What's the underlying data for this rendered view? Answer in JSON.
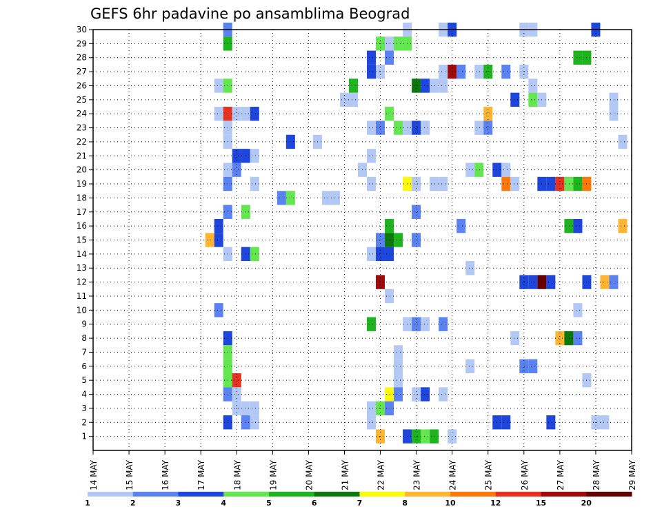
{
  "chart_data": {
    "type": "heatmap",
    "title": "GEFS 6hr padavine po ansamblima Beograd",
    "xlabel": "",
    "ylabel": "",
    "y_ticks": [
      "1",
      "2",
      "3",
      "4",
      "5",
      "6",
      "7",
      "8",
      "9",
      "10",
      "11",
      "12",
      "13",
      "14",
      "15",
      "16",
      "17",
      "18",
      "19",
      "20",
      "21",
      "22",
      "23",
      "24",
      "25",
      "26",
      "27",
      "28",
      "29",
      "30"
    ],
    "x_ticks": [
      "14 MAY",
      "15 MAY",
      "16 MAY",
      "17 MAY",
      "18 MAY",
      "19 MAY",
      "20 MAY",
      "21 MAY",
      "22 MAY",
      "23 MAY",
      "24 MAY",
      "25 MAY",
      "26 MAY",
      "27 MAY",
      "28 MAY",
      "29 MAY"
    ],
    "xlim_days": [
      14,
      29
    ],
    "ylim": [
      0,
      30
    ],
    "grid": true,
    "colorbar": {
      "labels": [
        "1",
        "2",
        "3",
        "4",
        "5",
        "6",
        "7",
        "8",
        "10",
        "12",
        "15",
        "20"
      ],
      "colors": [
        "#b4c8f5",
        "#5a82f0",
        "#1e46dc",
        "#64e650",
        "#1eb41e",
        "#0a780a",
        "#fafa0a",
        "#ffb432",
        "#ff780a",
        "#e6321e",
        "#a00a0a",
        "#640000"
      ]
    },
    "cells": [
      {
        "day": 17.75,
        "member": 30,
        "c": 1
      },
      {
        "day": 22.75,
        "member": 30,
        "c": 0
      },
      {
        "day": 23.75,
        "member": 30,
        "c": 0
      },
      {
        "day": 24.0,
        "member": 30,
        "c": 2
      },
      {
        "day": 26.0,
        "member": 30,
        "c": 0
      },
      {
        "day": 26.25,
        "member": 30,
        "c": 0
      },
      {
        "day": 28.0,
        "member": 30,
        "c": 2
      },
      {
        "day": 17.75,
        "member": 29,
        "c": 4
      },
      {
        "day": 22.0,
        "member": 29,
        "c": 3
      },
      {
        "day": 22.25,
        "member": 29,
        "c": 0
      },
      {
        "day": 22.5,
        "member": 29,
        "c": 3
      },
      {
        "day": 22.75,
        "member": 29,
        "c": 3
      },
      {
        "day": 22.25,
        "member": 28,
        "c": 1
      },
      {
        "day": 27.5,
        "member": 28,
        "c": 4
      },
      {
        "day": 27.75,
        "member": 28,
        "c": 4
      },
      {
        "day": 21.75,
        "member": 28,
        "c": 2
      },
      {
        "day": 21.75,
        "member": 27,
        "c": 2
      },
      {
        "day": 22.0,
        "member": 27,
        "c": 0
      },
      {
        "day": 23.75,
        "member": 27,
        "c": 0
      },
      {
        "day": 24.0,
        "member": 27,
        "c": 10
      },
      {
        "day": 24.25,
        "member": 27,
        "c": 1
      },
      {
        "day": 24.75,
        "member": 27,
        "c": 0
      },
      {
        "day": 25.0,
        "member": 27,
        "c": 4
      },
      {
        "day": 25.5,
        "member": 27,
        "c": 1
      },
      {
        "day": 26.0,
        "member": 27,
        "c": 0
      },
      {
        "day": 17.5,
        "member": 26,
        "c": 0
      },
      {
        "day": 17.75,
        "member": 26,
        "c": 3
      },
      {
        "day": 21.25,
        "member": 26,
        "c": 4
      },
      {
        "day": 23.0,
        "member": 26,
        "c": 5
      },
      {
        "day": 23.25,
        "member": 26,
        "c": 2
      },
      {
        "day": 23.5,
        "member": 26,
        "c": 0
      },
      {
        "day": 23.75,
        "member": 26,
        "c": 0
      },
      {
        "day": 26.25,
        "member": 26,
        "c": 0
      },
      {
        "day": 21.0,
        "member": 25,
        "c": 0
      },
      {
        "day": 21.25,
        "member": 25,
        "c": 0
      },
      {
        "day": 25.75,
        "member": 25,
        "c": 2
      },
      {
        "day": 26.25,
        "member": 25,
        "c": 3
      },
      {
        "day": 26.5,
        "member": 25,
        "c": 0
      },
      {
        "day": 28.5,
        "member": 25,
        "c": 0
      },
      {
        "day": 17.5,
        "member": 24,
        "c": 0
      },
      {
        "day": 17.75,
        "member": 24,
        "c": 9
      },
      {
        "day": 18.0,
        "member": 24,
        "c": 0
      },
      {
        "day": 18.25,
        "member": 24,
        "c": 0
      },
      {
        "day": 18.5,
        "member": 24,
        "c": 2
      },
      {
        "day": 22.25,
        "member": 24,
        "c": 3
      },
      {
        "day": 25.0,
        "member": 24,
        "c": 7
      },
      {
        "day": 28.5,
        "member": 24,
        "c": 0
      },
      {
        "day": 17.75,
        "member": 23,
        "c": 0
      },
      {
        "day": 21.75,
        "member": 23,
        "c": 0
      },
      {
        "day": 22.0,
        "member": 23,
        "c": 1
      },
      {
        "day": 22.5,
        "member": 23,
        "c": 3
      },
      {
        "day": 22.75,
        "member": 23,
        "c": 0
      },
      {
        "day": 23.0,
        "member": 23,
        "c": 2
      },
      {
        "day": 23.25,
        "member": 23,
        "c": 0
      },
      {
        "day": 24.75,
        "member": 23,
        "c": 0
      },
      {
        "day": 25.0,
        "member": 23,
        "c": 1
      },
      {
        "day": 17.75,
        "member": 22,
        "c": 0
      },
      {
        "day": 19.5,
        "member": 22,
        "c": 2
      },
      {
        "day": 20.25,
        "member": 22,
        "c": 0
      },
      {
        "day": 28.75,
        "member": 22,
        "c": 0
      },
      {
        "day": 18.0,
        "member": 21,
        "c": 2
      },
      {
        "day": 18.25,
        "member": 21,
        "c": 2
      },
      {
        "day": 18.5,
        "member": 21,
        "c": 0
      },
      {
        "day": 21.75,
        "member": 21,
        "c": 0
      },
      {
        "day": 17.75,
        "member": 20,
        "c": 0
      },
      {
        "day": 18.0,
        "member": 20,
        "c": 1
      },
      {
        "day": 21.5,
        "member": 20,
        "c": 0
      },
      {
        "day": 24.5,
        "member": 20,
        "c": 0
      },
      {
        "day": 24.75,
        "member": 20,
        "c": 3
      },
      {
        "day": 25.25,
        "member": 20,
        "c": 2
      },
      {
        "day": 25.5,
        "member": 20,
        "c": 0
      },
      {
        "day": 17.75,
        "member": 19,
        "c": 1
      },
      {
        "day": 18.5,
        "member": 19,
        "c": 0
      },
      {
        "day": 21.75,
        "member": 19,
        "c": 0
      },
      {
        "day": 22.75,
        "member": 19,
        "c": 6
      },
      {
        "day": 23.0,
        "member": 19,
        "c": 0
      },
      {
        "day": 23.5,
        "member": 19,
        "c": 0
      },
      {
        "day": 23.75,
        "member": 19,
        "c": 0
      },
      {
        "day": 25.5,
        "member": 19,
        "c": 8
      },
      {
        "day": 25.75,
        "member": 19,
        "c": 0
      },
      {
        "day": 26.5,
        "member": 19,
        "c": 2
      },
      {
        "day": 26.75,
        "member": 19,
        "c": 2
      },
      {
        "day": 27.0,
        "member": 19,
        "c": 9
      },
      {
        "day": 27.25,
        "member": 19,
        "c": 3
      },
      {
        "day": 27.5,
        "member": 19,
        "c": 4
      },
      {
        "day": 27.75,
        "member": 19,
        "c": 8
      },
      {
        "day": 19.25,
        "member": 18,
        "c": 1
      },
      {
        "day": 19.5,
        "member": 18,
        "c": 3
      },
      {
        "day": 20.5,
        "member": 18,
        "c": 0
      },
      {
        "day": 20.75,
        "member": 18,
        "c": 0
      },
      {
        "day": 17.75,
        "member": 17,
        "c": 1
      },
      {
        "day": 18.25,
        "member": 17,
        "c": 3
      },
      {
        "day": 23.0,
        "member": 17,
        "c": 1
      },
      {
        "day": 17.5,
        "member": 16,
        "c": 2
      },
      {
        "day": 22.25,
        "member": 16,
        "c": 4
      },
      {
        "day": 24.25,
        "member": 16,
        "c": 1
      },
      {
        "day": 27.25,
        "member": 16,
        "c": 4
      },
      {
        "day": 27.5,
        "member": 16,
        "c": 2
      },
      {
        "day": 28.75,
        "member": 16,
        "c": 7
      },
      {
        "day": 17.25,
        "member": 15,
        "c": 7
      },
      {
        "day": 17.5,
        "member": 15,
        "c": 2
      },
      {
        "day": 22.0,
        "member": 15,
        "c": 1
      },
      {
        "day": 22.25,
        "member": 15,
        "c": 5
      },
      {
        "day": 22.5,
        "member": 15,
        "c": 4
      },
      {
        "day": 23.0,
        "member": 15,
        "c": 1
      },
      {
        "day": 17.75,
        "member": 14,
        "c": 0
      },
      {
        "day": 18.25,
        "member": 14,
        "c": 2
      },
      {
        "day": 18.5,
        "member": 14,
        "c": 3
      },
      {
        "day": 21.75,
        "member": 14,
        "c": 0
      },
      {
        "day": 22.0,
        "member": 14,
        "c": 2
      },
      {
        "day": 22.25,
        "member": 14,
        "c": 2
      },
      {
        "day": 24.5,
        "member": 13,
        "c": 0
      },
      {
        "day": 22.0,
        "member": 12,
        "c": 10
      },
      {
        "day": 26.0,
        "member": 12,
        "c": 2
      },
      {
        "day": 26.25,
        "member": 12,
        "c": 2
      },
      {
        "day": 26.5,
        "member": 12,
        "c": 11
      },
      {
        "day": 26.75,
        "member": 12,
        "c": 2
      },
      {
        "day": 27.75,
        "member": 12,
        "c": 2
      },
      {
        "day": 28.25,
        "member": 12,
        "c": 7
      },
      {
        "day": 28.5,
        "member": 12,
        "c": 1
      },
      {
        "day": 22.25,
        "member": 11,
        "c": 0
      },
      {
        "day": 17.5,
        "member": 10,
        "c": 1
      },
      {
        "day": 27.5,
        "member": 10,
        "c": 0
      },
      {
        "day": 21.75,
        "member": 9,
        "c": 4
      },
      {
        "day": 22.75,
        "member": 9,
        "c": 0
      },
      {
        "day": 23.0,
        "member": 9,
        "c": 1
      },
      {
        "day": 23.25,
        "member": 9,
        "c": 0
      },
      {
        "day": 23.75,
        "member": 9,
        "c": 1
      },
      {
        "day": 17.75,
        "member": 8,
        "c": 2
      },
      {
        "day": 25.75,
        "member": 8,
        "c": 0
      },
      {
        "day": 27.0,
        "member": 8,
        "c": 7
      },
      {
        "day": 27.25,
        "member": 8,
        "c": 5
      },
      {
        "day": 27.5,
        "member": 8,
        "c": 1
      },
      {
        "day": 17.75,
        "member": 7,
        "c": 3
      },
      {
        "day": 22.5,
        "member": 7,
        "c": 0
      },
      {
        "day": 17.75,
        "member": 6,
        "c": 3
      },
      {
        "day": 22.5,
        "member": 6,
        "c": 0
      },
      {
        "day": 24.5,
        "member": 6,
        "c": 0
      },
      {
        "day": 26.0,
        "member": 6,
        "c": 1
      },
      {
        "day": 26.25,
        "member": 6,
        "c": 1
      },
      {
        "day": 17.75,
        "member": 5,
        "c": 3
      },
      {
        "day": 18.0,
        "member": 5,
        "c": 9
      },
      {
        "day": 22.5,
        "member": 5,
        "c": 0
      },
      {
        "day": 27.75,
        "member": 5,
        "c": 0
      },
      {
        "day": 17.75,
        "member": 4,
        "c": 1
      },
      {
        "day": 18.0,
        "member": 4,
        "c": 0
      },
      {
        "day": 22.25,
        "member": 4,
        "c": 6
      },
      {
        "day": 22.5,
        "member": 4,
        "c": 1
      },
      {
        "day": 23.0,
        "member": 4,
        "c": 0
      },
      {
        "day": 23.25,
        "member": 4,
        "c": 2
      },
      {
        "day": 23.75,
        "member": 4,
        "c": 0
      },
      {
        "day": 18.0,
        "member": 3,
        "c": 0
      },
      {
        "day": 18.25,
        "member": 3,
        "c": 0
      },
      {
        "day": 18.5,
        "member": 3,
        "c": 0
      },
      {
        "day": 21.75,
        "member": 3,
        "c": 0
      },
      {
        "day": 22.0,
        "member": 3,
        "c": 3
      },
      {
        "day": 22.25,
        "member": 3,
        "c": 1
      },
      {
        "day": 17.75,
        "member": 2,
        "c": 2
      },
      {
        "day": 18.25,
        "member": 2,
        "c": 1
      },
      {
        "day": 18.5,
        "member": 2,
        "c": 0
      },
      {
        "day": 21.75,
        "member": 2,
        "c": 0
      },
      {
        "day": 25.25,
        "member": 2,
        "c": 2
      },
      {
        "day": 25.5,
        "member": 2,
        "c": 2
      },
      {
        "day": 26.75,
        "member": 2,
        "c": 2
      },
      {
        "day": 28.0,
        "member": 2,
        "c": 0
      },
      {
        "day": 28.25,
        "member": 2,
        "c": 0
      },
      {
        "day": 22.0,
        "member": 1,
        "c": 7
      },
      {
        "day": 22.75,
        "member": 1,
        "c": 2
      },
      {
        "day": 23.0,
        "member": 1,
        "c": 4
      },
      {
        "day": 23.25,
        "member": 1,
        "c": 3
      },
      {
        "day": 23.5,
        "member": 1,
        "c": 4
      },
      {
        "day": 24.0,
        "member": 1,
        "c": 0
      }
    ]
  }
}
